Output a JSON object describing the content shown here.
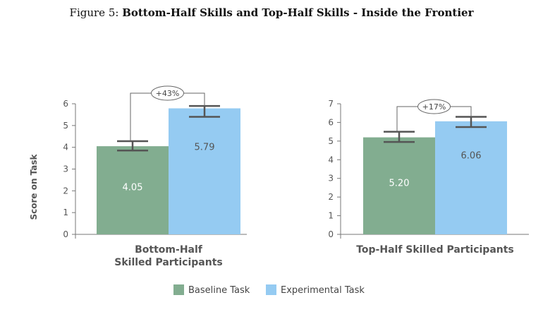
{
  "title_prefix": "Figure 5: ",
  "title_bold": "Bottom-Half Skills and Top-Half Skills - Inside the Frontier",
  "colors": {
    "baseline": "#82ad90",
    "experimental": "#95cbf2",
    "axis": "#777777",
    "errorbar": "#555555"
  },
  "legend": {
    "placement": "bottom-center",
    "items": [
      "Baseline Task",
      "Experimental Task"
    ]
  },
  "chart_data": [
    {
      "type": "bar",
      "ylabel": "Score on Task",
      "ylim": [
        0,
        6
      ],
      "yticks": [
        "0",
        "1",
        "2",
        "3",
        "4",
        "5",
        "6"
      ],
      "category_lines": [
        "Bottom-Half",
        "Skilled Participants"
      ],
      "series": [
        {
          "name": "Baseline Task",
          "value": 4.05,
          "label": "4.05",
          "error": [
            3.85,
            4.28
          ]
        },
        {
          "name": "Experimental Task",
          "value": 5.79,
          "label": "5.79",
          "error": [
            5.4,
            5.9
          ]
        }
      ],
      "annotation": "+43%"
    },
    {
      "type": "bar",
      "ylabel": "",
      "ylim": [
        0,
        7
      ],
      "yticks": [
        "0",
        "1",
        "2",
        "3",
        "4",
        "5",
        "6",
        "7"
      ],
      "category_lines": [
        "Top-Half Skilled Participants"
      ],
      "series": [
        {
          "name": "Baseline Task",
          "value": 5.2,
          "label": "5.20",
          "error": [
            4.95,
            5.5
          ]
        },
        {
          "name": "Experimental Task",
          "value": 6.06,
          "label": "6.06",
          "error": [
            5.75,
            6.3
          ]
        }
      ],
      "annotation": "+17%"
    }
  ]
}
